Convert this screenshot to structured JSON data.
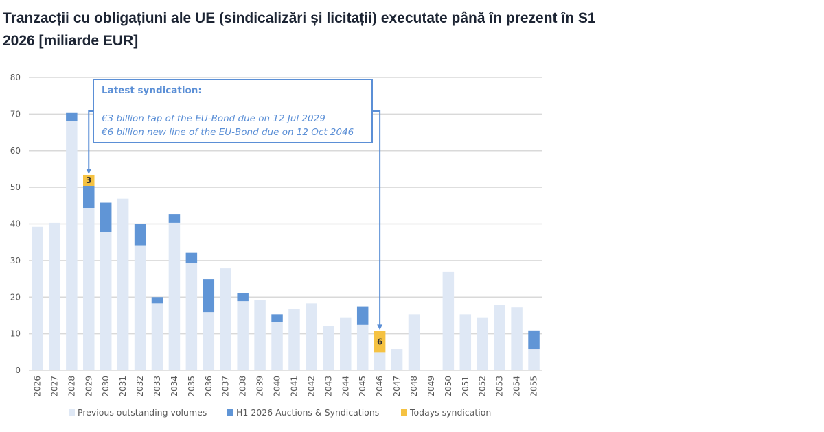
{
  "title": "Tranzacții cu obligațiuni ale UE (sindicalizări și licitații) executate până în prezent în S1 2026 [miliarde EUR]",
  "annotation": {
    "heading": "Latest syndication:",
    "line1": "€3 billion tap of the EU-Bond due on 12 Jul 2029",
    "line2": "€6 billion new line of the EU-Bond due on 12 Oct 2046"
  },
  "chart_data": {
    "type": "bar",
    "stacked": true,
    "title": "Tranzacții cu obligațiuni ale UE (sindicalizări și licitații) executate până în prezent în S1 2026 [miliarde EUR]",
    "ylim": [
      0,
      80
    ],
    "yticks": [
      0,
      10,
      20,
      30,
      40,
      50,
      60,
      70,
      80
    ],
    "grid": true,
    "legend_position": "bottom",
    "categories": [
      "2026",
      "2027",
      "2028",
      "2029",
      "2030",
      "2031",
      "2032",
      "2033",
      "2034",
      "2035",
      "2036",
      "2037",
      "2038",
      "2039",
      "2040",
      "2041",
      "2042",
      "2043",
      "2044",
      "2045",
      "2046",
      "2047",
      "2048",
      "2049",
      "2050",
      "2051",
      "2052",
      "2053",
      "2054",
      "2055"
    ],
    "series": [
      {
        "name": "Previous outstanding volumes",
        "color": "#dfe8f5",
        "values": [
          39.2,
          40.3,
          68.1,
          44.4,
          37.8,
          46.9,
          34.0,
          18.3,
          40.3,
          29.3,
          15.9,
          27.9,
          18.9,
          19.2,
          13.3,
          16.8,
          18.3,
          12.0,
          14.3,
          12.4,
          4.8,
          5.8,
          15.3,
          0,
          27.0,
          15.3,
          14.3,
          17.8,
          17.2,
          5.8
        ]
      },
      {
        "name": "H1 2026 Auctions & Syndications",
        "color": "#6095d6",
        "values": [
          0,
          0,
          2.2,
          6.0,
          8.0,
          0,
          6.0,
          1.7,
          2.4,
          2.8,
          9.0,
          0,
          2.2,
          0,
          2.0,
          0,
          0,
          0,
          0,
          5.1,
          0,
          0,
          0,
          0,
          0,
          0,
          0,
          0,
          0,
          5.1
        ]
      },
      {
        "name": "Todays syndication",
        "color": "#f5c242",
        "values": [
          0,
          0,
          0,
          3,
          0,
          0,
          0,
          0,
          0,
          0,
          0,
          0,
          0,
          0,
          0,
          0,
          0,
          0,
          0,
          0,
          6,
          0,
          0,
          0,
          0,
          0,
          0,
          0,
          0,
          0
        ]
      }
    ],
    "data_labels": {
      "2029": "3",
      "2046": "6"
    }
  },
  "legend": [
    "Previous outstanding volumes",
    "H1 2026 Auctions & Syndications",
    "Todays syndication"
  ]
}
